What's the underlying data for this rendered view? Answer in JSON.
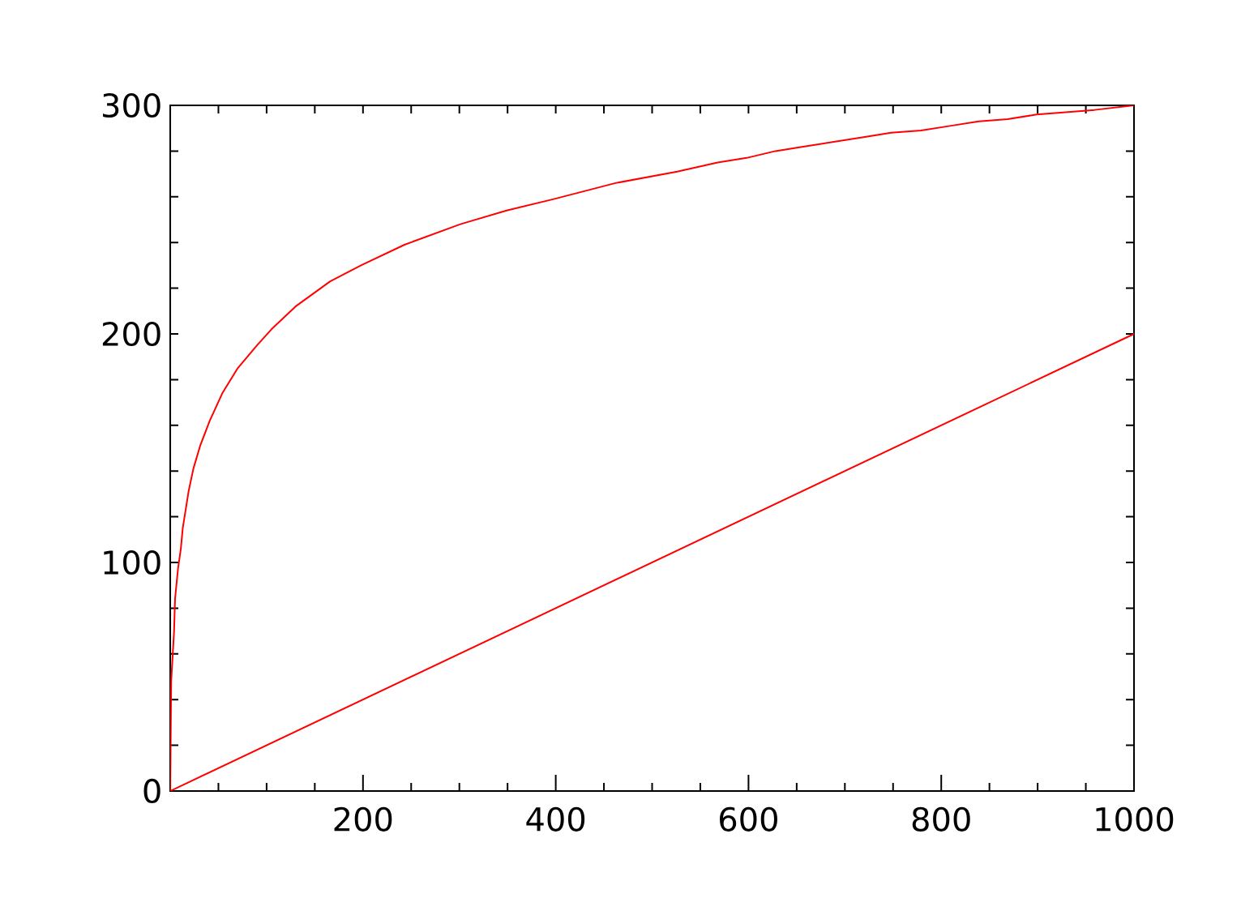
{
  "chart_data": {
    "type": "line",
    "xlim": [
      0,
      1000
    ],
    "ylim": [
      0,
      300
    ],
    "xticks": [
      {
        "value": 50,
        "label": null
      },
      {
        "value": 100,
        "label": null
      },
      {
        "value": 150,
        "label": null
      },
      200,
      {
        "value": 250,
        "label": null
      },
      {
        "value": 300,
        "label": null
      },
      {
        "value": 350,
        "label": null
      },
      400,
      {
        "value": 450,
        "label": null
      },
      {
        "value": 500,
        "label": null
      },
      {
        "value": 550,
        "label": null
      },
      600,
      {
        "value": 650,
        "label": null
      },
      {
        "value": 700,
        "label": null
      },
      {
        "value": 750,
        "label": null
      },
      800,
      {
        "value": 850,
        "label": null
      },
      {
        "value": 900,
        "label": null
      },
      {
        "value": 950,
        "label": null
      },
      1000
    ],
    "yticks": [
      0,
      {
        "value": 20,
        "label": null
      },
      {
        "value": 40,
        "label": null
      },
      {
        "value": 60,
        "label": null
      },
      {
        "value": 80,
        "label": null
      },
      100,
      {
        "value": 120,
        "label": null
      },
      {
        "value": 140,
        "label": null
      },
      {
        "value": 160,
        "label": null
      },
      {
        "value": 180,
        "label": null
      },
      200,
      {
        "value": 220,
        "label": null
      },
      {
        "value": 240,
        "label": null
      },
      {
        "value": 260,
        "label": null
      },
      {
        "value": 280,
        "label": null
      },
      300
    ],
    "series": [
      {
        "color": "#ff0000",
        "x": [
          0,
          1,
          4,
          5,
          8,
          11,
          13,
          16,
          19,
          24,
          31,
          41,
          54,
          70,
          90,
          105,
          130,
          166,
          198,
          243,
          301,
          349,
          398,
          462,
          526,
          568,
          598,
          628,
          658,
          688,
          718,
          748,
          779,
          809,
          839,
          869,
          899,
          929,
          959,
          1000
        ],
        "values": [
          0,
          48,
          70,
          84,
          97,
          106,
          115,
          123,
          131,
          141,
          151,
          162,
          174,
          185,
          195,
          202,
          212,
          223,
          230,
          239,
          248,
          254,
          259,
          266,
          271,
          275,
          277,
          280,
          282,
          284,
          286,
          288,
          289,
          291,
          293,
          294,
          296,
          297,
          298,
          300
        ]
      },
      {
        "color": "#ff0000",
        "x": [
          0,
          1000
        ],
        "values": [
          0,
          200
        ]
      }
    ]
  }
}
